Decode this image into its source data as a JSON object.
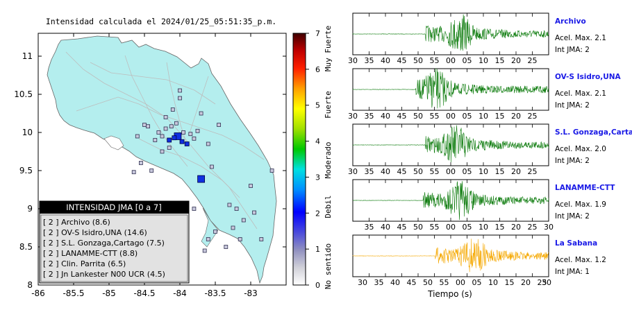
{
  "title": "Intensidad calculada el 2024/01/25_05:51:35_p.m.",
  "colors": {
    "land": "#b4eeee",
    "trace_green": "#0a7a0a",
    "trace_orange": "#f5a800",
    "station_label": "#1a1ae6",
    "legend_header_bg": "#000000",
    "legend_bg": "#e2e2e2"
  },
  "map": {
    "xlim": [
      -86.0,
      -82.5
    ],
    "ylim": [
      8.0,
      11.3
    ],
    "x_ticks": [
      "-86",
      "-85.5",
      "-85",
      "-84.5",
      "-84",
      "-83.5",
      "-83"
    ],
    "y_ticks": [
      "8",
      "8.5",
      "9",
      "9.5",
      "10",
      "10.5",
      "11"
    ]
  },
  "colorbar": {
    "min": 0,
    "max": 7,
    "tick_labels": [
      "0",
      "1",
      "2",
      "3",
      "4",
      "5",
      "6",
      "7"
    ],
    "category_labels": [
      "No sentido",
      "Debil",
      "Moderado",
      "Fuerte",
      "Muy Fuerte"
    ]
  },
  "legend": {
    "header": "INTENSIDAD JMA [0 a 7]",
    "items": [
      "[ 2 ]  Archivo (8.6)",
      "[ 2 ]  OV-S Isidro,UNA (14.6)",
      "[ 2 ]  S.L. Gonzaga,Cartago (7.5)",
      "[ 2 ]  LANAMME-CTT (8.8)",
      "[ 2 ]  Clin. Parrita (6.5)",
      "[ 2 ]  Jn Lankester N00 UCR (4.5)"
    ]
  },
  "waveforms": {
    "time_ticks": [
      "30",
      "35",
      "40",
      "45",
      "50",
      "55",
      "00",
      "05",
      "10",
      "15",
      "20",
      "25"
    ],
    "last_panel_extra_tick": "30",
    "xlabel": "Tiempo (s)",
    "panels": [
      {
        "name": "Archivo",
        "acel": "Acel. Max. 2.1",
        "jma": "Int JMA: 2",
        "first_tick": "30",
        "onset": 0.37,
        "peak": 0.55,
        "color": "green"
      },
      {
        "name": "OV-S Isidro,UNA",
        "acel": "Acel. Max. 2.1",
        "jma": "Int JMA: 2",
        "first_tick": "30",
        "onset": 0.32,
        "peak": 0.43,
        "color": "green"
      },
      {
        "name": "S.L. Gonzaga,Cartago",
        "acel": "Acel. Max. 2.0",
        "jma": "Int JMA: 2",
        "first_tick": "30",
        "onset": 0.37,
        "peak": 0.53,
        "color": "green"
      },
      {
        "name": "LANAMME-CTT",
        "acel": "Acel. Max. 1.9",
        "jma": "Int JMA: 2",
        "first_tick": "",
        "onset": 0.36,
        "peak": 0.55,
        "color": "green"
      },
      {
        "name": "La Sabana",
        "acel": "Acel. Max. 1.2",
        "jma": "Int JMA: 1",
        "first_tick": "30",
        "onset": 0.42,
        "peak": 0.62,
        "color": "orange"
      }
    ]
  },
  "chart_data": {
    "type": "scatter",
    "title": "Intensidad calculada el 2024/01/25_05:51:35_p.m.",
    "xlim": [
      -86.0,
      -82.5
    ],
    "ylim": [
      8.0,
      11.3
    ],
    "xlabel": "",
    "ylabel": "",
    "color_scale": "JMA intensity 0-7",
    "epicenter_stations_blue": [
      {
        "lon": -84.03,
        "lat": 9.95,
        "jma": 2
      },
      {
        "lon": -83.7,
        "lat": 9.39,
        "jma": 2
      },
      {
        "lon": -84.08,
        "lat": 9.93,
        "jma": 2
      },
      {
        "lon": -83.9,
        "lat": 9.85,
        "jma": 2
      },
      {
        "lon": -84.15,
        "lat": 9.9,
        "jma": 2
      },
      {
        "lon": -83.97,
        "lat": 9.88,
        "jma": 2
      }
    ],
    "stations_grey": [
      {
        "lon": -84.0,
        "lat": 10.45,
        "jma": 1
      },
      {
        "lon": -84.1,
        "lat": 10.3,
        "jma": 1
      },
      {
        "lon": -84.2,
        "lat": 10.2,
        "jma": 1
      },
      {
        "lon": -84.3,
        "lat": 10.0,
        "jma": 1
      },
      {
        "lon": -84.45,
        "lat": 10.08,
        "jma": 1
      },
      {
        "lon": -84.25,
        "lat": 9.95,
        "jma": 1
      },
      {
        "lon": -84.35,
        "lat": 9.9,
        "jma": 1
      },
      {
        "lon": -84.2,
        "lat": 10.05,
        "jma": 1
      },
      {
        "lon": -84.12,
        "lat": 10.08,
        "jma": 1
      },
      {
        "lon": -84.05,
        "lat": 10.12,
        "jma": 1
      },
      {
        "lon": -83.85,
        "lat": 9.98,
        "jma": 1
      },
      {
        "lon": -83.95,
        "lat": 10.0,
        "jma": 1
      },
      {
        "lon": -84.15,
        "lat": 9.8,
        "jma": 1
      },
      {
        "lon": -84.25,
        "lat": 9.75,
        "jma": 1
      },
      {
        "lon": -84.55,
        "lat": 9.6,
        "jma": 1
      },
      {
        "lon": -84.4,
        "lat": 9.5,
        "jma": 1
      },
      {
        "lon": -84.65,
        "lat": 9.48,
        "jma": 1
      },
      {
        "lon": -83.7,
        "lat": 10.25,
        "jma": 1
      },
      {
        "lon": -83.75,
        "lat": 10.02,
        "jma": 1
      },
      {
        "lon": -83.8,
        "lat": 9.92,
        "jma": 1
      },
      {
        "lon": -83.6,
        "lat": 9.85,
        "jma": 1
      },
      {
        "lon": -83.45,
        "lat": 10.1,
        "jma": 1
      },
      {
        "lon": -83.3,
        "lat": 9.05,
        "jma": 1
      },
      {
        "lon": -83.2,
        "lat": 9.0,
        "jma": 1
      },
      {
        "lon": -83.1,
        "lat": 8.85,
        "jma": 1
      },
      {
        "lon": -82.95,
        "lat": 8.95,
        "jma": 1
      },
      {
        "lon": -82.85,
        "lat": 8.6,
        "jma": 1
      },
      {
        "lon": -83.15,
        "lat": 8.6,
        "jma": 1
      },
      {
        "lon": -83.35,
        "lat": 8.5,
        "jma": 1
      },
      {
        "lon": -83.5,
        "lat": 8.7,
        "jma": 1
      },
      {
        "lon": -83.6,
        "lat": 8.6,
        "jma": 1
      },
      {
        "lon": -82.7,
        "lat": 9.5,
        "jma": 1
      },
      {
        "lon": -83.8,
        "lat": 9.0,
        "jma": 1
      },
      {
        "lon": -84.5,
        "lat": 10.1,
        "jma": 1
      },
      {
        "lon": -84.0,
        "lat": 10.55,
        "jma": 1
      },
      {
        "lon": -83.55,
        "lat": 9.55,
        "jma": 1
      },
      {
        "lon": -83.0,
        "lat": 9.3,
        "jma": 1
      },
      {
        "lon": -83.65,
        "lat": 8.45,
        "jma": 1
      },
      {
        "lon": -83.25,
        "lat": 8.75,
        "jma": 1
      },
      {
        "lon": -84.6,
        "lat": 9.95,
        "jma": 1
      }
    ]
  }
}
